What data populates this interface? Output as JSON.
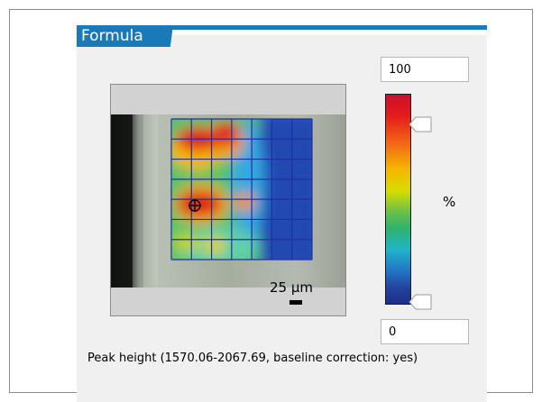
{
  "panel": {
    "title": "Formula"
  },
  "map": {
    "scale_bar_label": "25 µm",
    "cursor_icon": "crosshair-icon",
    "grid": {
      "rows": 7,
      "cols": 7
    },
    "colormap": "jet"
  },
  "colorbar": {
    "max_value": "100",
    "min_value": "0",
    "unit": "%",
    "upper_handle_level": 0.9,
    "lower_handle_level": 0.0,
    "colors": [
      "#c8102e",
      "#f36b16",
      "#f5b800",
      "#6cc04a",
      "#1fb4c8",
      "#2377c6",
      "#1d2f8a"
    ]
  },
  "caption": "Peak height (1570.06-2067.69, baseline correction: yes)",
  "colors": {
    "accent": "#1a79b8",
    "panel_bg": "#f0f0f0",
    "grid_line": "#1f2fa8"
  }
}
